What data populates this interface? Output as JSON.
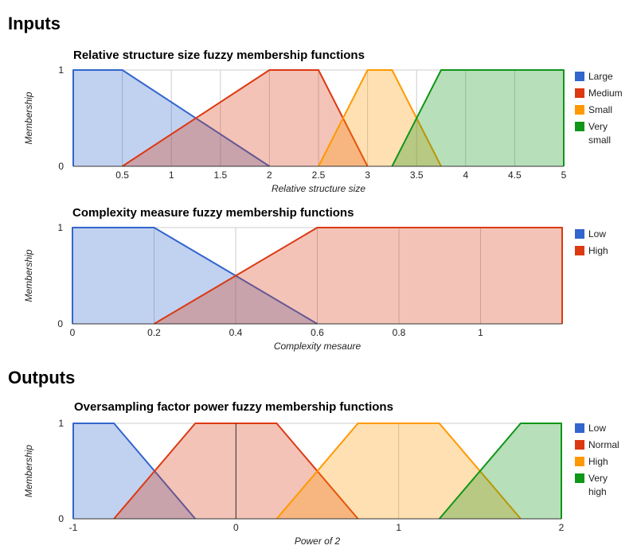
{
  "sections": {
    "inputs": "Inputs",
    "outputs": "Outputs"
  },
  "chart_data": [
    {
      "type": "area",
      "title": "Relative structure size fuzzy membership functions",
      "xlabel": "Relative structure size",
      "ylabel": "Membership",
      "xlim": [
        0,
        5
      ],
      "ylim": [
        0,
        1
      ],
      "x_ticks": [
        0.5,
        1,
        1.5,
        2,
        2.5,
        3,
        3.5,
        4,
        4.5,
        5
      ],
      "x_tick_labels": [
        "0.5",
        "1",
        "1.5",
        "2",
        "2.5",
        "3",
        "3.5",
        "4",
        "4.5",
        "5"
      ],
      "y_ticks": [
        0,
        1
      ],
      "y_tick_labels": [
        "0",
        "1"
      ],
      "grid": true,
      "legend": "right",
      "series": [
        {
          "name": "Large",
          "color": "#3366cc",
          "points": [
            [
              0,
              0
            ],
            [
              0,
              1
            ],
            [
              0.5,
              1
            ],
            [
              2,
              0
            ]
          ]
        },
        {
          "name": "Medium",
          "color": "#dc3912",
          "points": [
            [
              0.5,
              0
            ],
            [
              2,
              1
            ],
            [
              2.5,
              1
            ],
            [
              3,
              0
            ]
          ]
        },
        {
          "name": "Small",
          "color": "#ff9900",
          "points": [
            [
              2.5,
              0
            ],
            [
              3,
              1
            ],
            [
              3.25,
              1
            ],
            [
              3.75,
              0
            ]
          ]
        },
        {
          "name": "Very small",
          "color": "#109618",
          "legend_lines": [
            "Very",
            "small"
          ],
          "points": [
            [
              3.25,
              0
            ],
            [
              3.75,
              1
            ],
            [
              5,
              1
            ],
            [
              5,
              0
            ]
          ]
        }
      ]
    },
    {
      "type": "area",
      "title": "Complexity measure fuzzy membership functions",
      "xlabel": "Complexity mesaure",
      "ylabel": "Membership",
      "xlim": [
        0,
        1.2
      ],
      "ylim": [
        0,
        1
      ],
      "x_ticks": [
        0,
        0.2,
        0.4,
        0.6,
        0.8,
        1
      ],
      "x_tick_labels": [
        "0",
        "0.2",
        "0.4",
        "0.6",
        "0.8",
        "1"
      ],
      "y_ticks": [
        0,
        1
      ],
      "y_tick_labels": [
        "0",
        "1"
      ],
      "grid": true,
      "legend": "right",
      "series": [
        {
          "name": "Low",
          "color": "#3366cc",
          "points": [
            [
              0,
              0
            ],
            [
              0,
              1
            ],
            [
              0.2,
              1
            ],
            [
              0.6,
              0
            ]
          ]
        },
        {
          "name": "High",
          "color": "#dc3912",
          "points": [
            [
              0.2,
              0
            ],
            [
              0.6,
              1
            ],
            [
              1.2,
              1
            ],
            [
              1.2,
              0
            ]
          ]
        }
      ]
    },
    {
      "type": "area",
      "title": "Oversampling factor power fuzzy membership functions",
      "xlabel": "Power of 2",
      "ylabel": "Membership",
      "xlim": [
        -1,
        2
      ],
      "ylim": [
        0,
        1
      ],
      "x_ticks": [
        -1,
        0,
        1,
        2
      ],
      "x_tick_labels": [
        "-1",
        "0",
        "1",
        "2"
      ],
      "y_ticks": [
        0,
        1
      ],
      "y_tick_labels": [
        "0",
        "1"
      ],
      "grid": true,
      "zero_line": true,
      "legend": "right",
      "series": [
        {
          "name": "Low",
          "color": "#3366cc",
          "points": [
            [
              -1,
              0
            ],
            [
              -1,
              1
            ],
            [
              -0.75,
              1
            ],
            [
              -0.25,
              0
            ]
          ]
        },
        {
          "name": "Normal",
          "color": "#dc3912",
          "points": [
            [
              -0.75,
              0
            ],
            [
              -0.25,
              1
            ],
            [
              0.25,
              1
            ],
            [
              0.75,
              0
            ]
          ]
        },
        {
          "name": "High",
          "color": "#ff9900",
          "points": [
            [
              0.25,
              0
            ],
            [
              0.75,
              1
            ],
            [
              1.25,
              1
            ],
            [
              1.75,
              0
            ]
          ]
        },
        {
          "name": "Very high",
          "color": "#109618",
          "legend_lines": [
            "Very",
            "high"
          ],
          "points": [
            [
              1.25,
              0
            ],
            [
              1.75,
              1
            ],
            [
              2,
              1
            ],
            [
              2,
              0
            ]
          ]
        }
      ]
    }
  ]
}
